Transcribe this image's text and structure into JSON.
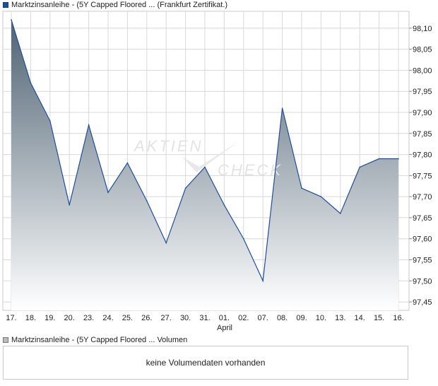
{
  "legend": {
    "price_label": "Marktzinsanleihe - (5Y Capped Floored ... (Frankfurt Zertifikat.)",
    "volume_label": "Marktzinsanleihe - (5Y Capped Floored ... Volumen"
  },
  "watermark": {
    "text_top": "AKTIEN",
    "text_bottom": "CHECK"
  },
  "volume": {
    "empty_message": "keine Volumendaten vorhanden"
  },
  "colors": {
    "line": "#1f4e9c",
    "fill_top": "#4f6373",
    "fill_bottom": "#ffffff",
    "grid": "#d8d8d8"
  },
  "chart_data": {
    "type": "area",
    "categories": [
      "17.",
      "18.",
      "19.",
      "20.",
      "23.",
      "24.",
      "25.",
      "26.",
      "27.",
      "30.",
      "31.",
      "01.",
      "02.",
      "07.",
      "08.",
      "09.",
      "10.",
      "13.",
      "14.",
      "15.",
      "16."
    ],
    "month_label": "April",
    "values": [
      98.12,
      97.97,
      97.88,
      97.68,
      97.87,
      97.71,
      97.78,
      97.69,
      97.59,
      97.72,
      97.77,
      97.68,
      97.6,
      97.5,
      97.91,
      97.72,
      97.7,
      97.66,
      97.77,
      97.79,
      97.79
    ],
    "yticks": [
      "97,45",
      "97,50",
      "97,55",
      "97,60",
      "97,65",
      "97,70",
      "97,75",
      "97,80",
      "97,85",
      "97,90",
      "97,95",
      "98,00",
      "98,05",
      "98,10"
    ],
    "ylim": [
      97.43,
      98.14
    ],
    "grid": true
  }
}
